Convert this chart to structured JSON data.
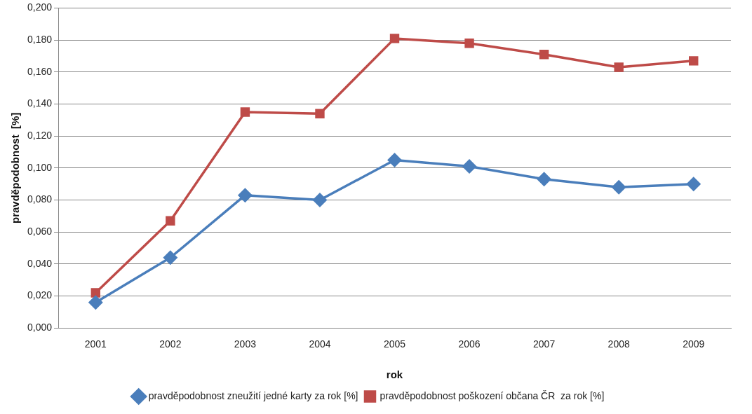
{
  "chart_data": {
    "type": "line",
    "xlabel": "rok",
    "ylabel": "pravděpodobnost  [%]",
    "categories": [
      "2001",
      "2002",
      "2003",
      "2004",
      "2005",
      "2006",
      "2007",
      "2008",
      "2009"
    ],
    "series": [
      {
        "name": "pravděpodobnost zneužití jedné karty za rok [%]",
        "color": "#4a7ebb",
        "marker": "diamond",
        "values": [
          0.016,
          0.044,
          0.083,
          0.08,
          0.105,
          0.101,
          0.093,
          0.088,
          0.09
        ]
      },
      {
        "name": "pravděpodobnost poškození občana ČR  za rok [%]",
        "color": "#be4b48",
        "marker": "square",
        "values": [
          0.022,
          0.067,
          0.135,
          0.134,
          0.181,
          0.178,
          0.171,
          0.163,
          0.167
        ]
      }
    ],
    "ylim": [
      0,
      0.2
    ],
    "yticks": [
      {
        "value": 0,
        "label": "0,000"
      },
      {
        "value": 0.02,
        "label": "0,020"
      },
      {
        "value": 0.04,
        "label": "0,040"
      },
      {
        "value": 0.06,
        "label": "0,060"
      },
      {
        "value": 0.08,
        "label": "0,080"
      },
      {
        "value": 0.1,
        "label": "0,100"
      },
      {
        "value": 0.12,
        "label": "0,120"
      },
      {
        "value": 0.14,
        "label": "0,140"
      },
      {
        "value": 0.16,
        "label": "0,160"
      },
      {
        "value": 0.18,
        "label": "0,180"
      },
      {
        "value": 0.2,
        "label": "0,200"
      }
    ],
    "grid": "y",
    "legend": "bottom",
    "line_style": "solid"
  }
}
